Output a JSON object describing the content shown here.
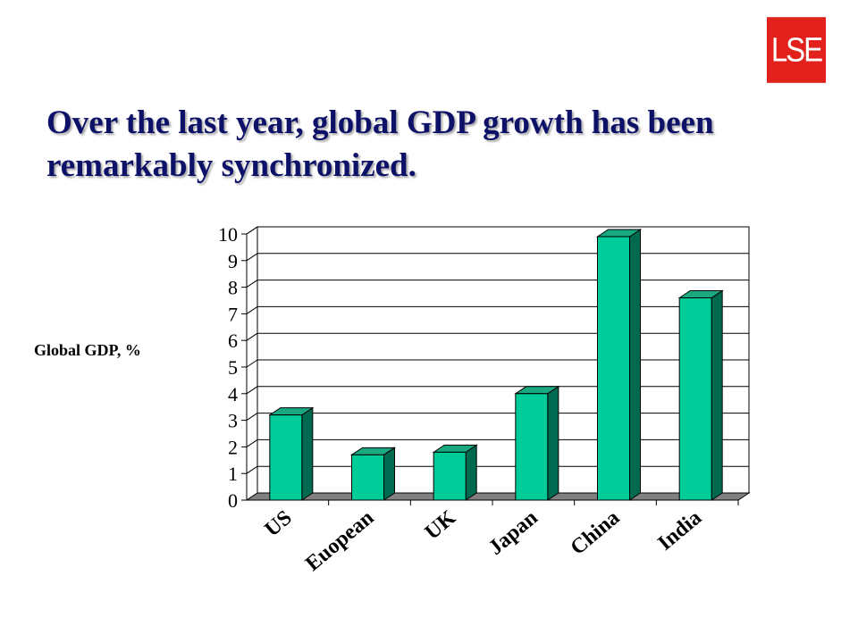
{
  "header": {
    "logo_text": "LSE",
    "logo_color": "#e2211c",
    "title": "Over the last year, global GDP growth has been remarkably synchronized."
  },
  "chart_data": {
    "type": "bar",
    "style": "3d",
    "categories": [
      "US",
      "Euopean",
      "UK",
      "Japan",
      "China",
      "India"
    ],
    "values": [
      3.2,
      1.7,
      1.8,
      4.0,
      9.9,
      7.6
    ],
    "title": "",
    "xlabel": "",
    "ylabel": "Global GDP, %",
    "ylim": [
      0,
      10
    ],
    "yticks": [
      0,
      1,
      2,
      3,
      4,
      5,
      6,
      7,
      8,
      9,
      10
    ],
    "grid": true,
    "legend": "none",
    "colors": {
      "bar_front": "#00cc99",
      "bar_side": "#006a50",
      "bar_top": "#19a87f",
      "floor": "#808080"
    }
  }
}
